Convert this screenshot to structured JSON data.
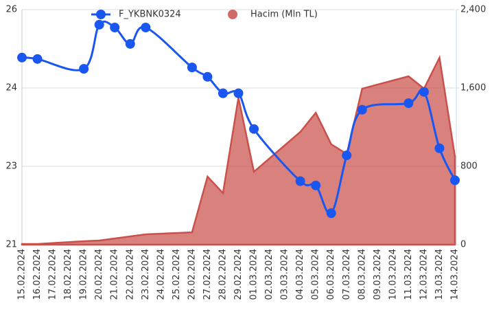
{
  "chart_data": {
    "type": "line-area",
    "categories": [
      "15.02.2024",
      "16.02.2024",
      "17.02.2024",
      "18.02.2024",
      "19.02.2024",
      "20.02.2024",
      "21.02.2024",
      "22.02.2024",
      "23.02.2024",
      "24.02.2024",
      "25.02.2024",
      "26.02.2024",
      "27.02.2024",
      "28.02.2024",
      "29.02.2024",
      "01.03.2024",
      "02.03.2024",
      "03.03.2024",
      "04.03.2024",
      "05.03.2024",
      "06.03.2024",
      "07.03.2024",
      "08.03.2024",
      "09.03.2024",
      "10.03.2024",
      "11.03.2024",
      "12.03.2024",
      "13.03.2024",
      "14.03.2024"
    ],
    "series": [
      {
        "name": "F_YKBNK0324",
        "type": "line",
        "color": "#1a56f0",
        "x": [
          "15.02.2024",
          "16.02.2024",
          "19.02.2024",
          "20.02.2024",
          "21.02.2024",
          "22.02.2024",
          "23.02.2024",
          "26.02.2024",
          "27.02.2024",
          "28.02.2024",
          "29.02.2024",
          "01.03.2024",
          "04.03.2024",
          "05.03.2024",
          "06.03.2024",
          "07.03.2024",
          "08.03.2024",
          "11.03.2024",
          "12.03.2024",
          "13.03.2024",
          "14.03.2024"
        ],
        "values": [
          24.98,
          24.95,
          24.74,
          25.68,
          25.62,
          25.27,
          25.62,
          24.77,
          24.57,
          24.22,
          24.22,
          23.46,
          22.35,
          22.26,
          21.67,
          22.9,
          23.87,
          24.01,
          24.25,
          23.05,
          22.37
        ]
      },
      {
        "name": "Hacim (Mln TL)",
        "type": "area",
        "axis": "y2",
        "color": "#c9504b",
        "x": [
          "15.02.2024",
          "16.02.2024",
          "19.02.2024",
          "20.02.2024",
          "23.02.2024",
          "26.02.2024",
          "27.02.2024",
          "28.02.2024",
          "29.02.2024",
          "01.03.2024",
          "04.03.2024",
          "05.03.2024",
          "06.03.2024",
          "07.03.2024",
          "08.03.2024",
          "11.03.2024",
          "12.03.2024",
          "13.03.2024",
          "14.03.2024"
        ],
        "values": [
          7,
          7,
          35,
          42,
          105,
          126,
          695,
          526,
          1502,
          744,
          1151,
          1347,
          1025,
          926,
          1593,
          1719,
          1593,
          1909,
          898
        ]
      }
    ],
    "ylim": [
      21,
      26
    ],
    "yticks": [
      21,
      {
        "value": 22.6667,
        "label": "23"
      },
      {
        "value": 24.3333,
        "label": "24"
      },
      26
    ],
    "y2lim": [
      0,
      2400
    ],
    "y2ticks": [
      0,
      800,
      {
        "value": 1600,
        "label": "1,600"
      },
      {
        "value": 2400,
        "label": "2,400"
      }
    ],
    "grid": true,
    "legend": "top"
  }
}
